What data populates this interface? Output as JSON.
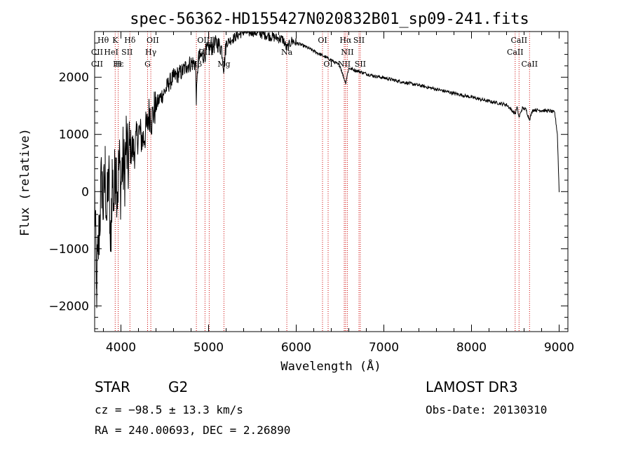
{
  "chart_data": {
    "type": "line",
    "title": "spec-56362-HD155427N020832B01_sp09-241.fits",
    "xlabel": "Wavelength (Å)",
    "ylabel": "Flux (relative)",
    "xlim": [
      3700,
      9100
    ],
    "ylim": [
      -2450,
      2800
    ],
    "x_ticks": [
      4000,
      5000,
      6000,
      7000,
      8000,
      9000
    ],
    "x_tick_labels": [
      "4000",
      "5000",
      "6000",
      "7000",
      "8000",
      "9000"
    ],
    "y_ticks": [
      -2000,
      -1000,
      0,
      1000,
      2000
    ],
    "y_tick_labels": [
      "−2000",
      "−1000",
      "0",
      "1000",
      "2000"
    ],
    "series": [
      {
        "name": "spectrum",
        "x": [
          3700,
          3720,
          3740,
          3760,
          3780,
          3800,
          3820,
          3840,
          3860,
          3880,
          3900,
          3920,
          3940,
          3960,
          3980,
          4000,
          4020,
          4040,
          4060,
          4080,
          4100,
          4150,
          4200,
          4250,
          4300,
          4310,
          4330,
          4350,
          4380,
          4400,
          4450,
          4500,
          4550,
          4600,
          4650,
          4700,
          4750,
          4800,
          4850,
          4861,
          4880,
          4900,
          4950,
          5000,
          5050,
          5100,
          5150,
          5175,
          5200,
          5250,
          5300,
          5350,
          5400,
          5450,
          5500,
          5550,
          5600,
          5650,
          5700,
          5750,
          5800,
          5850,
          5893,
          5950,
          6000,
          6100,
          6200,
          6300,
          6400,
          6500,
          6563,
          6600,
          6700,
          6800,
          6900,
          7000,
          7200,
          7400,
          7600,
          7800,
          8000,
          8200,
          8400,
          8498,
          8520,
          8542,
          8580,
          8620,
          8662,
          8700,
          8800,
          8900,
          8950,
          8980,
          9000
        ],
        "values": [
          0,
          -1700,
          -1100,
          -400,
          250,
          -300,
          350,
          -500,
          400,
          -1050,
          300,
          -200,
          600,
          0,
          500,
          100,
          550,
          300,
          900,
          400,
          800,
          700,
          1050,
          900,
          1150,
          1300,
          1400,
          1250,
          1450,
          1500,
          1650,
          1750,
          1900,
          2000,
          2050,
          2100,
          2200,
          2250,
          2250,
          1600,
          2300,
          2350,
          2400,
          2500,
          2550,
          2600,
          2500,
          2150,
          2600,
          2650,
          2700,
          2750,
          2800,
          2780,
          2800,
          2780,
          2760,
          2740,
          2720,
          2700,
          2680,
          2660,
          2500,
          2640,
          2600,
          2540,
          2460,
          2380,
          2300,
          2200,
          1900,
          2160,
          2110,
          2060,
          2020,
          1990,
          1920,
          1860,
          1790,
          1720,
          1650,
          1580,
          1520,
          1360,
          1480,
          1300,
          1460,
          1440,
          1260,
          1430,
          1420,
          1410,
          1380,
          1000,
          0
        ]
      }
    ],
    "lines": [
      {
        "name": "ca-k-line",
        "wavelength": 3934
      },
      {
        "name": "ca-h-line",
        "wavelength": 3969
      },
      {
        "name": "h-delta-line",
        "wavelength": 4102
      },
      {
        "name": "g-band-line",
        "wavelength": 4304
      },
      {
        "name": "h-gamma-line",
        "wavelength": 4341
      },
      {
        "name": "h-beta-line",
        "wavelength": 4861
      },
      {
        "name": "oiii-4959-line",
        "wavelength": 4959
      },
      {
        "name": "oiii-5007-line",
        "wavelength": 5007
      },
      {
        "name": "mg-line",
        "wavelength": 5175
      },
      {
        "name": "na-line",
        "wavelength": 5893
      },
      {
        "name": "oi-6300-line",
        "wavelength": 6300
      },
      {
        "name": "oi-6364-line",
        "wavelength": 6364
      },
      {
        "name": "nii-6548-line",
        "wavelength": 6548
      },
      {
        "name": "h-alpha-line",
        "wavelength": 6563
      },
      {
        "name": "nii-6583-line",
        "wavelength": 6583
      },
      {
        "name": "sii-6716-line",
        "wavelength": 6716
      },
      {
        "name": "sii-6731-line",
        "wavelength": 6731
      },
      {
        "name": "cii-8498-line",
        "wavelength": 8498
      },
      {
        "name": "cii-8542-line",
        "wavelength": 8542
      },
      {
        "name": "cii-8662-line",
        "wavelength": 8662
      }
    ],
    "line_labels": [
      {
        "text": "Hθ",
        "wavelength": 3797,
        "row": 1
      },
      {
        "text": "K",
        "wavelength": 3934,
        "row": 1
      },
      {
        "text": "Hδ",
        "wavelength": 4102,
        "row": 1
      },
      {
        "text": "OII",
        "wavelength": 4363,
        "row": 1
      },
      {
        "text": "OIII",
        "wavelength": 4959,
        "row": 1
      },
      {
        "text": "OI",
        "wavelength": 6300,
        "row": 1
      },
      {
        "text": "Hα",
        "wavelength": 6563,
        "row": 1
      },
      {
        "text": "SII",
        "wavelength": 6716,
        "row": 1
      },
      {
        "text": "CaII",
        "wavelength": 8542,
        "row": 1
      },
      {
        "text": "CII",
        "wavelength": 3727,
        "row": 2
      },
      {
        "text": "HeI",
        "wavelength": 3889,
        "row": 2
      },
      {
        "text": "SII",
        "wavelength": 4070,
        "row": 2
      },
      {
        "text": "Hγ",
        "wavelength": 4341,
        "row": 2
      },
      {
        "text": "OIII",
        "wavelength": 4970,
        "row": 2
      },
      {
        "text": "Na",
        "wavelength": 5893,
        "row": 2
      },
      {
        "text": "NII",
        "wavelength": 6583,
        "row": 2
      },
      {
        "text": "CaII",
        "wavelength": 8498,
        "row": 2
      },
      {
        "text": "CII",
        "wavelength": 3727,
        "row": 3
      },
      {
        "text": "Hε",
        "wavelength": 3970,
        "row": 3
      },
      {
        "text": "H",
        "wavelength": 3969,
        "row": 3
      },
      {
        "text": "G",
        "wavelength": 4304,
        "row": 3
      },
      {
        "text": "Hβ",
        "wavelength": 4861,
        "row": 3
      },
      {
        "text": "Mg",
        "wavelength": 5175,
        "row": 3
      },
      {
        "text": "OI",
        "wavelength": 6364,
        "row": 3
      },
      {
        "text": "NII",
        "wavelength": 6548,
        "row": 3
      },
      {
        "text": "SII",
        "wavelength": 6731,
        "row": 3
      },
      {
        "text": "CaII",
        "wavelength": 8662,
        "row": 3
      }
    ]
  },
  "info": {
    "object_class": "STAR",
    "subclass": "G2",
    "redshift": "cz = −98.5 ± 13.3 km/s",
    "coordinates": "RA = 240.00693, DEC =    2.26890",
    "survey": "LAMOST DR3",
    "obs_date": "Obs-Date: 20130310"
  },
  "colors": {
    "spectrum": "#000000",
    "line_markers": "#cc0000",
    "axes": "#000000",
    "background": "#ffffff"
  }
}
